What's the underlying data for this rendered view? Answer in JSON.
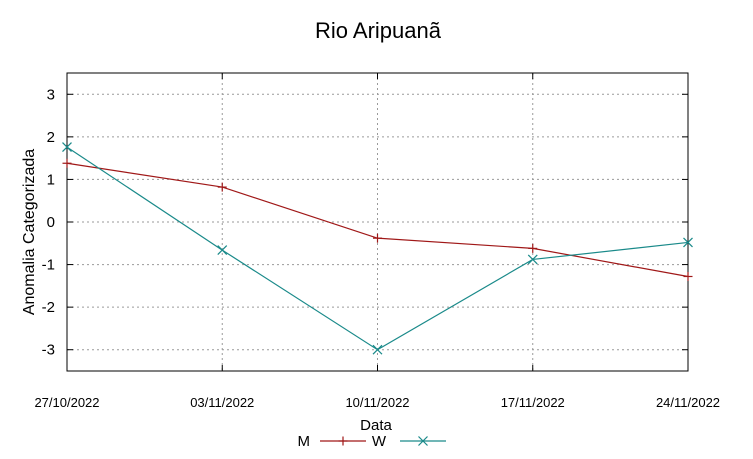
{
  "chart_data": {
    "type": "line",
    "title": "Rio Aripuanã",
    "xlabel": "Data",
    "ylabel": "Anomalia Categorizada",
    "categories": [
      "27/10/2022",
      "03/11/2022",
      "10/11/2022",
      "17/11/2022",
      "24/11/2022"
    ],
    "ylim": [
      -3.5,
      3.5
    ],
    "yticks": [
      3,
      2,
      1,
      0,
      -1,
      -2,
      -3
    ],
    "grid": true,
    "legend_position": "bottom",
    "series": [
      {
        "name": "M",
        "color": "#a01818",
        "marker": "plus",
        "values": [
          1.38,
          0.82,
          -0.38,
          -0.62,
          -1.28
        ]
      },
      {
        "name": "W",
        "color": "#1a8a8a",
        "marker": "cross",
        "values": [
          1.76,
          -0.66,
          -3.0,
          -0.88,
          -0.48
        ]
      }
    ]
  }
}
